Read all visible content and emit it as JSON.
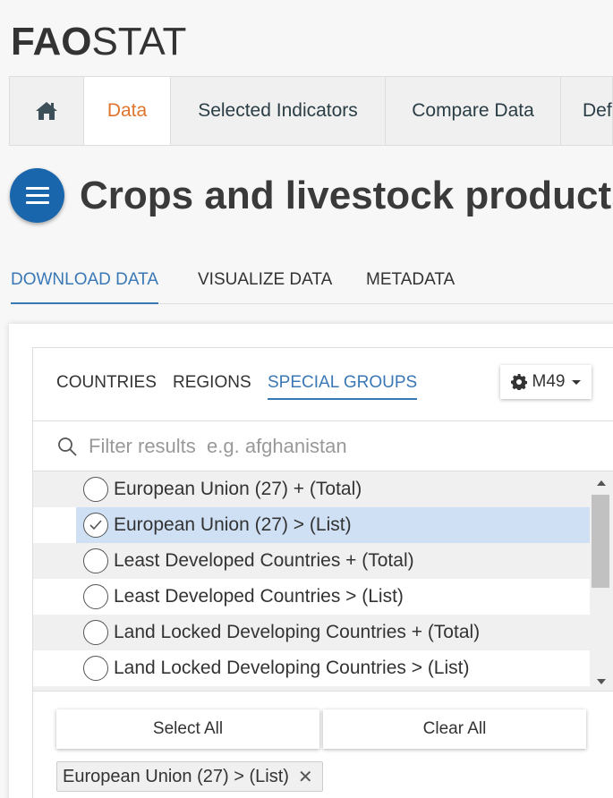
{
  "logo": {
    "bold": "FAO",
    "light": "STAT"
  },
  "topnav": {
    "home_icon": "home-icon",
    "items": [
      "Data",
      "Selected Indicators",
      "Compare Data",
      "Def"
    ]
  },
  "menu_icon": "hamburger-icon",
  "page_title": "Crops and livestock products",
  "tabs": [
    "DOWNLOAD DATA",
    "VISUALIZE DATA",
    "METADATA"
  ],
  "subtabs": [
    "COUNTRIES",
    "REGIONS",
    "SPECIAL GROUPS"
  ],
  "m49": {
    "label": "M49",
    "icon": "gear-icon"
  },
  "filter": {
    "placeholder": "Filter results  e.g. afghanistan",
    "value": ""
  },
  "list": [
    {
      "label": "European Union (27) + (Total)",
      "checked": false
    },
    {
      "label": "European Union (27) > (List)",
      "checked": true
    },
    {
      "label": "Least Developed Countries + (Total)",
      "checked": false
    },
    {
      "label": "Least Developed Countries > (List)",
      "checked": false
    },
    {
      "label": "Land Locked Developing Countries + (Total)",
      "checked": false
    },
    {
      "label": "Land Locked Developing Countries > (List)",
      "checked": false
    }
  ],
  "actions": {
    "select_all": "Select All",
    "clear_all": "Clear All"
  },
  "selected_chip": {
    "label": "European Union (27) > (List)",
    "remove": "✕"
  },
  "colors": {
    "accent_blue": "#3a78b5",
    "active_orange": "#e0742c",
    "fab_blue": "#1a66ad",
    "selected_row": "#cfe0f5"
  }
}
